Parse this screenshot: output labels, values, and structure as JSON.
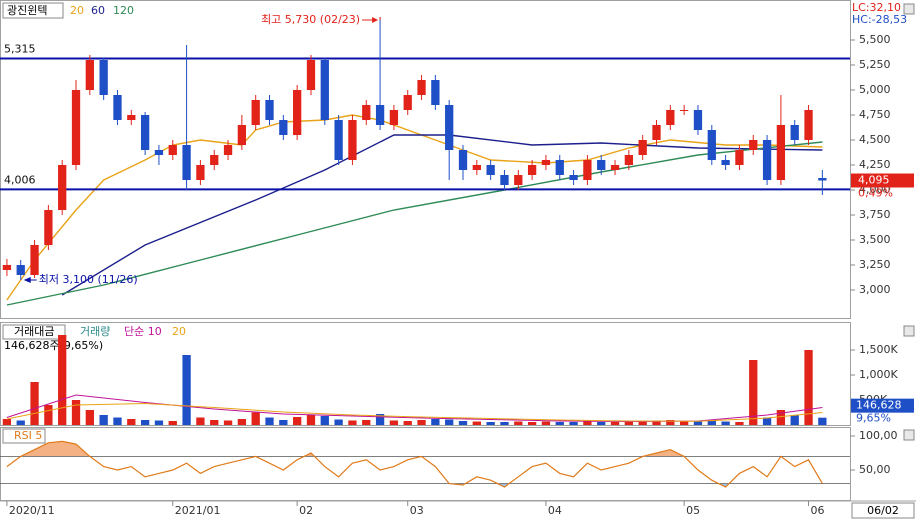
{
  "chart_data": [
    {
      "type": "candlestick",
      "title": "광진윈텍",
      "xlim": [
        -0.5,
        61
      ],
      "xticks": [
        {
          "value": 0,
          "label": "2020/11"
        },
        {
          "value": 12,
          "label": "2021/01"
        },
        {
          "value": 21,
          "label": "02"
        },
        {
          "value": 29,
          "label": "03"
        },
        {
          "value": 39,
          "label": "04"
        },
        {
          "value": 49,
          "label": "05"
        },
        {
          "value": 58,
          "label": "06"
        }
      ],
      "cursor_date": "06/02",
      "ylim": [
        2720,
        5900
      ],
      "yticks": [
        {
          "value": 3000,
          "label": "3,000"
        },
        {
          "value": 3250,
          "label": "3,250"
        },
        {
          "value": 3500,
          "label": "3,500"
        },
        {
          "value": 3750,
          "label": "3,750"
        },
        {
          "value": 4000,
          "label": "4,000"
        },
        {
          "value": 4250,
          "label": "4,250"
        },
        {
          "value": 4500,
          "label": "4,500"
        },
        {
          "value": 4750,
          "label": "4,750"
        },
        {
          "value": 5000,
          "label": "5,000"
        },
        {
          "value": 5250,
          "label": "5,250"
        },
        {
          "value": 5500,
          "label": "5,500"
        }
      ],
      "up_color": "#e2231a",
      "down_color": "#1f4fc7",
      "open": [
        3200,
        3250,
        3150,
        3450,
        3800,
        4250,
        5000,
        5300,
        4950,
        4700,
        4750,
        4400,
        4350,
        4450,
        4100,
        4250,
        4350,
        4450,
        4650,
        4900,
        4700,
        4550,
        5000,
        5300,
        4700,
        4300,
        4700,
        4850,
        4650,
        4800,
        4950,
        5100,
        4850,
        4400,
        4200,
        4250,
        4150,
        4050,
        4150,
        4250,
        4300,
        4150,
        4100,
        4300,
        4200,
        4250,
        4350,
        4500,
        4650,
        4800,
        4800,
        4600,
        4300,
        4250,
        4400,
        4500,
        4100,
        4650,
        4500,
        4120
      ],
      "high": [
        3310,
        3300,
        3500,
        3850,
        4300,
        5100,
        5350,
        5320,
        5000,
        4800,
        4780,
        4450,
        4500,
        5450,
        4300,
        4400,
        4500,
        4750,
        4950,
        4950,
        4750,
        5050,
        5350,
        5320,
        4750,
        4750,
        4900,
        5730,
        4850,
        5000,
        5150,
        5150,
        4900,
        4450,
        4300,
        4300,
        4200,
        4200,
        4300,
        4350,
        4350,
        4200,
        4350,
        4350,
        4300,
        4400,
        4550,
        4700,
        4850,
        4850,
        4850,
        4650,
        4350,
        4450,
        4550,
        4550,
        4950,
        4700,
        4850,
        4200
      ],
      "low": [
        3140,
        3100,
        3120,
        3400,
        3750,
        4200,
        4950,
        4900,
        4650,
        4650,
        4350,
        4250,
        4300,
        4000,
        4050,
        4200,
        4300,
        4400,
        4600,
        4650,
        4500,
        4500,
        4950,
        4650,
        4250,
        4250,
        4650,
        4600,
        4600,
        4750,
        4900,
        4800,
        4100,
        4100,
        4150,
        4100,
        4000,
        4000,
        4100,
        4200,
        4100,
        4050,
        4050,
        4150,
        4150,
        4200,
        4300,
        4450,
        4600,
        4750,
        4550,
        4250,
        4200,
        4200,
        4350,
        4050,
        4050,
        4450,
        4450,
        3950
      ],
      "close": [
        3250,
        3150,
        3450,
        3800,
        4250,
        5000,
        5300,
        4950,
        4700,
        4750,
        4400,
        4350,
        4450,
        4100,
        4250,
        4350,
        4450,
        4650,
        4900,
        4700,
        4550,
        5000,
        5300,
        4700,
        4300,
        4700,
        4850,
        4650,
        4800,
        4950,
        5100,
        4850,
        4400,
        4200,
        4250,
        4150,
        4050,
        4150,
        4250,
        4300,
        4150,
        4100,
        4300,
        4200,
        4250,
        4350,
        4500,
        4650,
        4800,
        4800,
        4600,
        4300,
        4250,
        4400,
        4500,
        4100,
        4650,
        4500,
        4800,
        4095
      ],
      "ma": [
        {
          "name": "20",
          "color": "#e8a317",
          "x": [
            0,
            2,
            5,
            7,
            10,
            12,
            14,
            17,
            18,
            20,
            23,
            25,
            27,
            30,
            33,
            35,
            39,
            42,
            45,
            48,
            52,
            55,
            59
          ],
          "values": [
            2900,
            3300,
            3800,
            4100,
            4300,
            4450,
            4500,
            4450,
            4600,
            4680,
            4700,
            4750,
            4700,
            4550,
            4400,
            4300,
            4270,
            4300,
            4420,
            4500,
            4450,
            4450,
            4430
          ]
        },
        {
          "name": "60",
          "color": "#1c1f8c",
          "x": [
            4,
            10,
            18,
            23,
            28,
            32,
            38,
            43,
            50,
            59
          ],
          "values": [
            2950,
            3450,
            3900,
            4200,
            4550,
            4550,
            4450,
            4470,
            4420,
            4400
          ]
        },
        {
          "name": "120",
          "color": "#2e8b57",
          "x": [
            0,
            7,
            14,
            21,
            28,
            36,
            43,
            50,
            59
          ],
          "values": [
            2850,
            3050,
            3300,
            3550,
            3800,
            4000,
            4180,
            4350,
            4480
          ]
        }
      ],
      "hlines": [
        {
          "value": 5315,
          "label": "5,315"
        },
        {
          "value": 4006,
          "label": "4,006"
        }
      ],
      "hline_color": "#0a12a8",
      "high_note": "최고 5,730 (02/23)",
      "high_index": 27,
      "low_note": "최저 3,100 (11/26)",
      "low_index": 1,
      "lc": "LC:32,10",
      "hc": "HC:-28,53",
      "last": {
        "value": 4095,
        "label": "4,095"
      },
      "change": "0,49%"
    },
    {
      "type": "bar",
      "title": "거래대금",
      "legend": [
        "거래량",
        "단순 10",
        "20"
      ],
      "legend_colors": [
        "#2a8a8a",
        "#c0139a",
        "#e8a317"
      ],
      "info": "146,628주(9,65%)",
      "ylim": [
        0,
        2060
      ],
      "yticks": [
        {
          "value": 500,
          "label": "500K"
        },
        {
          "value": 1000,
          "label": "1,000K"
        },
        {
          "value": 1500,
          "label": "1,500K"
        }
      ],
      "values": [
        120,
        90,
        860,
        400,
        1800,
        500,
        300,
        200,
        150,
        120,
        100,
        90,
        80,
        1400,
        150,
        100,
        90,
        120,
        250,
        150,
        100,
        160,
        200,
        180,
        110,
        90,
        100,
        220,
        90,
        80,
        100,
        120,
        110,
        80,
        70,
        60,
        60,
        70,
        60,
        70,
        60,
        60,
        80,
        60,
        60,
        70,
        80,
        90,
        100,
        80,
        80,
        90,
        70,
        60,
        1300,
        150,
        300,
        200,
        1500,
        146.628
      ],
      "ma": [
        {
          "name": "단순 10",
          "color": "#c0139a",
          "x": [
            0,
            5,
            10,
            15,
            20,
            25,
            30,
            35,
            40,
            45,
            50,
            55,
            59
          ],
          "values": [
            150,
            600,
            450,
            320,
            220,
            180,
            140,
            110,
            80,
            70,
            80,
            200,
            350
          ]
        },
        {
          "name": "20",
          "color": "#e8a317",
          "x": [
            0,
            5,
            10,
            15,
            20,
            25,
            30,
            35,
            40,
            45,
            50,
            55,
            59
          ],
          "values": [
            120,
            400,
            430,
            350,
            260,
            200,
            160,
            130,
            100,
            80,
            75,
            140,
            250
          ]
        }
      ],
      "last": {
        "value": 146.628,
        "label": "146,628"
      },
      "change": "9,65%"
    },
    {
      "type": "line",
      "title": "RSI 5",
      "color": "#e07b1a",
      "ylim": [
        5.9,
        113.2
      ],
      "yticks": [
        {
          "value": 50,
          "label": "50,00"
        },
        {
          "value": 100,
          "label": "100,00"
        }
      ],
      "ref_lines": [
        70,
        30
      ],
      "over_color": "#f4b183",
      "under_color": "#9dc3e6",
      "values": [
        55,
        70,
        80,
        90,
        92,
        88,
        70,
        55,
        50,
        55,
        40,
        45,
        50,
        60,
        45,
        55,
        60,
        65,
        70,
        60,
        50,
        65,
        75,
        55,
        40,
        60,
        65,
        50,
        55,
        65,
        70,
        55,
        30,
        28,
        40,
        35,
        25,
        40,
        55,
        60,
        45,
        40,
        60,
        50,
        55,
        60,
        70,
        75,
        80,
        70,
        50,
        35,
        25,
        45,
        55,
        40,
        70,
        55,
        65,
        30
      ]
    }
  ]
}
